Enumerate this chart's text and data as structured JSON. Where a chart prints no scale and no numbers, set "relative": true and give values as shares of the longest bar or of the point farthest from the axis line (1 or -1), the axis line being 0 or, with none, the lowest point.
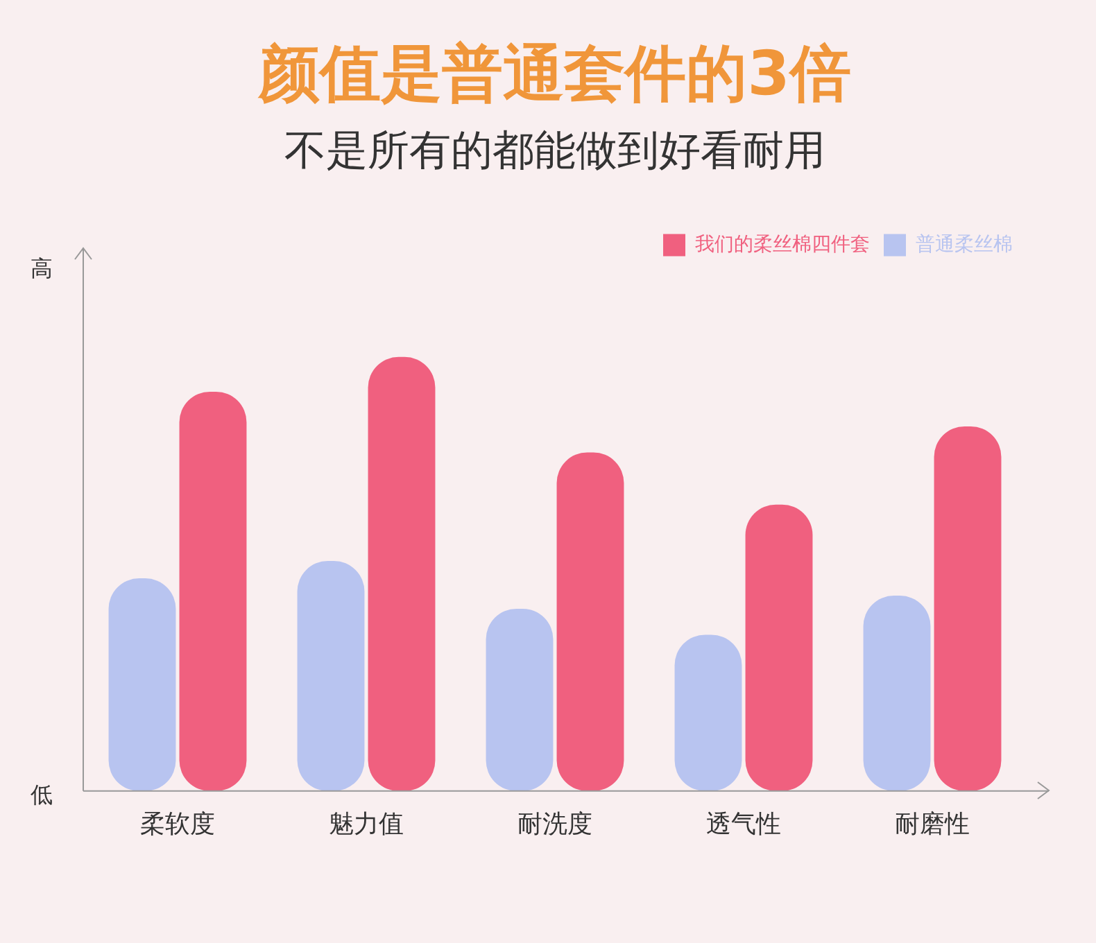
{
  "chart_data": {
    "type": "bar",
    "title": "颜值是普通套件的3倍",
    "subtitle": "不是所有的都能做到好看耐用",
    "categories": [
      "柔软度",
      "魅力值",
      "耐洗度",
      "透气性",
      "耐磨性"
    ],
    "series": [
      {
        "name": "普通柔丝棉",
        "color": "#b8c4f0",
        "values": [
          0.49,
          0.53,
          0.42,
          0.36,
          0.45
        ]
      },
      {
        "name": "我们的柔丝棉四件套",
        "color": "#f0607f",
        "values": [
          0.92,
          1,
          0.78,
          0.66,
          0.84
        ]
      }
    ],
    "relative": true,
    "legend": "top right",
    "grid": false,
    "annotations": [
      "高",
      "低"
    ]
  }
}
